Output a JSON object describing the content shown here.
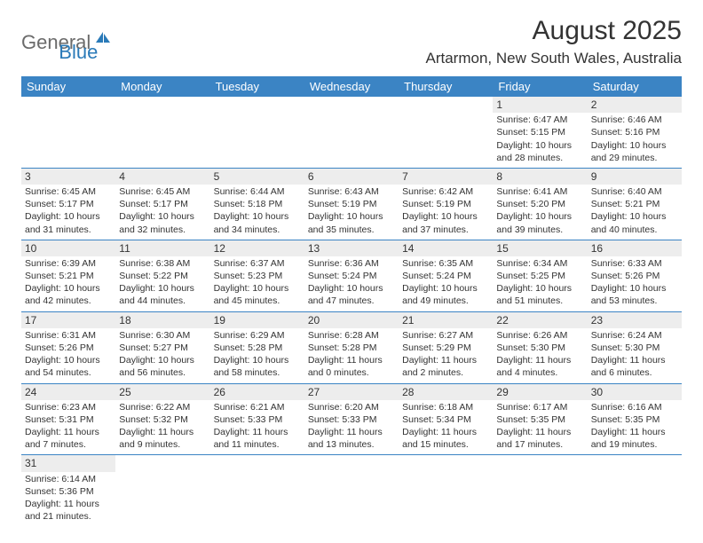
{
  "logo": {
    "part1": "General",
    "part2": "Blue"
  },
  "title": "August 2025",
  "location": "Artarmon, New South Wales, Australia",
  "header_bg": "#3b84c4",
  "shade_bg": "#ededed",
  "day_headers": [
    "Sunday",
    "Monday",
    "Tuesday",
    "Wednesday",
    "Thursday",
    "Friday",
    "Saturday"
  ],
  "weeks": [
    [
      null,
      null,
      null,
      null,
      null,
      {
        "n": "1",
        "sr": "Sunrise: 6:47 AM",
        "ss": "Sunset: 5:15 PM",
        "d1": "Daylight: 10 hours",
        "d2": "and 28 minutes."
      },
      {
        "n": "2",
        "sr": "Sunrise: 6:46 AM",
        "ss": "Sunset: 5:16 PM",
        "d1": "Daylight: 10 hours",
        "d2": "and 29 minutes."
      }
    ],
    [
      {
        "n": "3",
        "sr": "Sunrise: 6:45 AM",
        "ss": "Sunset: 5:17 PM",
        "d1": "Daylight: 10 hours",
        "d2": "and 31 minutes."
      },
      {
        "n": "4",
        "sr": "Sunrise: 6:45 AM",
        "ss": "Sunset: 5:17 PM",
        "d1": "Daylight: 10 hours",
        "d2": "and 32 minutes."
      },
      {
        "n": "5",
        "sr": "Sunrise: 6:44 AM",
        "ss": "Sunset: 5:18 PM",
        "d1": "Daylight: 10 hours",
        "d2": "and 34 minutes."
      },
      {
        "n": "6",
        "sr": "Sunrise: 6:43 AM",
        "ss": "Sunset: 5:19 PM",
        "d1": "Daylight: 10 hours",
        "d2": "and 35 minutes."
      },
      {
        "n": "7",
        "sr": "Sunrise: 6:42 AM",
        "ss": "Sunset: 5:19 PM",
        "d1": "Daylight: 10 hours",
        "d2": "and 37 minutes."
      },
      {
        "n": "8",
        "sr": "Sunrise: 6:41 AM",
        "ss": "Sunset: 5:20 PM",
        "d1": "Daylight: 10 hours",
        "d2": "and 39 minutes."
      },
      {
        "n": "9",
        "sr": "Sunrise: 6:40 AM",
        "ss": "Sunset: 5:21 PM",
        "d1": "Daylight: 10 hours",
        "d2": "and 40 minutes."
      }
    ],
    [
      {
        "n": "10",
        "sr": "Sunrise: 6:39 AM",
        "ss": "Sunset: 5:21 PM",
        "d1": "Daylight: 10 hours",
        "d2": "and 42 minutes."
      },
      {
        "n": "11",
        "sr": "Sunrise: 6:38 AM",
        "ss": "Sunset: 5:22 PM",
        "d1": "Daylight: 10 hours",
        "d2": "and 44 minutes."
      },
      {
        "n": "12",
        "sr": "Sunrise: 6:37 AM",
        "ss": "Sunset: 5:23 PM",
        "d1": "Daylight: 10 hours",
        "d2": "and 45 minutes."
      },
      {
        "n": "13",
        "sr": "Sunrise: 6:36 AM",
        "ss": "Sunset: 5:24 PM",
        "d1": "Daylight: 10 hours",
        "d2": "and 47 minutes."
      },
      {
        "n": "14",
        "sr": "Sunrise: 6:35 AM",
        "ss": "Sunset: 5:24 PM",
        "d1": "Daylight: 10 hours",
        "d2": "and 49 minutes."
      },
      {
        "n": "15",
        "sr": "Sunrise: 6:34 AM",
        "ss": "Sunset: 5:25 PM",
        "d1": "Daylight: 10 hours",
        "d2": "and 51 minutes."
      },
      {
        "n": "16",
        "sr": "Sunrise: 6:33 AM",
        "ss": "Sunset: 5:26 PM",
        "d1": "Daylight: 10 hours",
        "d2": "and 53 minutes."
      }
    ],
    [
      {
        "n": "17",
        "sr": "Sunrise: 6:31 AM",
        "ss": "Sunset: 5:26 PM",
        "d1": "Daylight: 10 hours",
        "d2": "and 54 minutes."
      },
      {
        "n": "18",
        "sr": "Sunrise: 6:30 AM",
        "ss": "Sunset: 5:27 PM",
        "d1": "Daylight: 10 hours",
        "d2": "and 56 minutes."
      },
      {
        "n": "19",
        "sr": "Sunrise: 6:29 AM",
        "ss": "Sunset: 5:28 PM",
        "d1": "Daylight: 10 hours",
        "d2": "and 58 minutes."
      },
      {
        "n": "20",
        "sr": "Sunrise: 6:28 AM",
        "ss": "Sunset: 5:28 PM",
        "d1": "Daylight: 11 hours",
        "d2": "and 0 minutes."
      },
      {
        "n": "21",
        "sr": "Sunrise: 6:27 AM",
        "ss": "Sunset: 5:29 PM",
        "d1": "Daylight: 11 hours",
        "d2": "and 2 minutes."
      },
      {
        "n": "22",
        "sr": "Sunrise: 6:26 AM",
        "ss": "Sunset: 5:30 PM",
        "d1": "Daylight: 11 hours",
        "d2": "and 4 minutes."
      },
      {
        "n": "23",
        "sr": "Sunrise: 6:24 AM",
        "ss": "Sunset: 5:30 PM",
        "d1": "Daylight: 11 hours",
        "d2": "and 6 minutes."
      }
    ],
    [
      {
        "n": "24",
        "sr": "Sunrise: 6:23 AM",
        "ss": "Sunset: 5:31 PM",
        "d1": "Daylight: 11 hours",
        "d2": "and 7 minutes."
      },
      {
        "n": "25",
        "sr": "Sunrise: 6:22 AM",
        "ss": "Sunset: 5:32 PM",
        "d1": "Daylight: 11 hours",
        "d2": "and 9 minutes."
      },
      {
        "n": "26",
        "sr": "Sunrise: 6:21 AM",
        "ss": "Sunset: 5:33 PM",
        "d1": "Daylight: 11 hours",
        "d2": "and 11 minutes."
      },
      {
        "n": "27",
        "sr": "Sunrise: 6:20 AM",
        "ss": "Sunset: 5:33 PM",
        "d1": "Daylight: 11 hours",
        "d2": "and 13 minutes."
      },
      {
        "n": "28",
        "sr": "Sunrise: 6:18 AM",
        "ss": "Sunset: 5:34 PM",
        "d1": "Daylight: 11 hours",
        "d2": "and 15 minutes."
      },
      {
        "n": "29",
        "sr": "Sunrise: 6:17 AM",
        "ss": "Sunset: 5:35 PM",
        "d1": "Daylight: 11 hours",
        "d2": "and 17 minutes."
      },
      {
        "n": "30",
        "sr": "Sunrise: 6:16 AM",
        "ss": "Sunset: 5:35 PM",
        "d1": "Daylight: 11 hours",
        "d2": "and 19 minutes."
      }
    ],
    [
      {
        "n": "31",
        "sr": "Sunrise: 6:14 AM",
        "ss": "Sunset: 5:36 PM",
        "d1": "Daylight: 11 hours",
        "d2": "and 21 minutes."
      },
      null,
      null,
      null,
      null,
      null,
      null
    ]
  ]
}
